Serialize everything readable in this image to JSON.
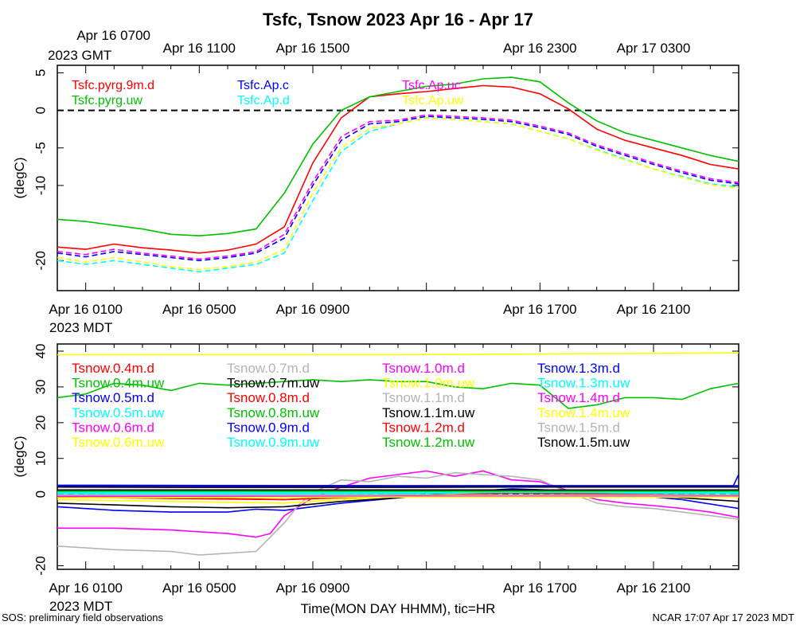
{
  "page": {
    "title": "Tsfc, Tsnow 2023 Apr 16 - Apr 17",
    "footer_left": "SOS: preliminary field observations",
    "footer_right": "NCAR 17:07 Apr 17 2023 MDT",
    "xlabel": "Time(MON DAY HHMM), tic=HR",
    "gmt_ticks": [
      "Apr 16 0700",
      "Apr 16 1100",
      "Apr 16 1500",
      "Apr 16 2300",
      "Apr 17 0300"
    ],
    "gmt_zone": "2023 GMT",
    "mdt_ticks": [
      "Apr 16 0100",
      "Apr 16 0500",
      "Apr 16 0900",
      "Apr 16 1700",
      "Apr 16 2100"
    ],
    "mdt_zone": "2023 MDT"
  },
  "chart_data": [
    {
      "type": "line",
      "title": "Tsfc, Tsnow 2023 Apr 16 - Apr 17",
      "ylabel": "(degC)",
      "xlabel": "",
      "ylim": [
        -24,
        6
      ],
      "x_ticks_hours": [
        1,
        5,
        9,
        13,
        17,
        21
      ],
      "y_ticks": [
        5,
        0,
        -5,
        -10,
        -20
      ],
      "reference_line": 0,
      "series": [
        {
          "name": "Tsfc.pyrg.9m.d",
          "color": "#ff0000",
          "dashed": false,
          "x": [
            0,
            1,
            2,
            3,
            4,
            5,
            6,
            7,
            8,
            9,
            10,
            11,
            12,
            13,
            14,
            15,
            16,
            17,
            18,
            19,
            20,
            21,
            22,
            23,
            24
          ],
          "y": [
            -18.2,
            -18.5,
            -17.8,
            -18.3,
            -18.6,
            -19.0,
            -18.6,
            -17.8,
            -15.5,
            -7.0,
            -1.0,
            1.8,
            2.2,
            2.5,
            2.9,
            3.3,
            3.1,
            2.2,
            0.2,
            -2.5,
            -4.0,
            -5.0,
            -6.0,
            -7.2,
            -7.8
          ]
        },
        {
          "name": "Tsfc.pyrg.uw",
          "color": "#00c000",
          "dashed": false,
          "x": [
            0,
            1,
            2,
            3,
            4,
            5,
            6,
            7,
            8,
            9,
            10,
            11,
            12,
            13,
            14,
            15,
            16,
            17,
            18,
            19,
            20,
            21,
            22,
            23,
            24
          ],
          "y": [
            -14.5,
            -14.8,
            -15.3,
            -15.8,
            -16.5,
            -16.7,
            -16.4,
            -15.8,
            -11.0,
            -4.5,
            0.0,
            1.8,
            2.5,
            3.2,
            3.5,
            4.2,
            4.4,
            3.8,
            1.0,
            -1.4,
            -3.0,
            -4.0,
            -5.0,
            -6.0,
            -6.8
          ]
        },
        {
          "name": "Tsfc.Ap.c",
          "color": "#0000ff",
          "dashed": true,
          "x": [
            0,
            1,
            2,
            3,
            4,
            5,
            6,
            7,
            8,
            9,
            10,
            11,
            12,
            13,
            14,
            15,
            16,
            17,
            18,
            19,
            20,
            21,
            22,
            23,
            24
          ],
          "y": [
            -19.0,
            -19.5,
            -18.8,
            -19.2,
            -19.6,
            -20.0,
            -19.6,
            -19.0,
            -17.0,
            -10.0,
            -4.0,
            -1.8,
            -1.5,
            -0.8,
            -1.0,
            -1.2,
            -1.5,
            -2.3,
            -3.2,
            -4.8,
            -6.0,
            -7.2,
            -8.3,
            -9.3,
            -9.8
          ]
        },
        {
          "name": "Tsfc.Ap.d",
          "color": "#00ffff",
          "dashed": true,
          "x": [
            0,
            1,
            2,
            3,
            4,
            5,
            6,
            7,
            8,
            9,
            10,
            11,
            12,
            13,
            14,
            15,
            16,
            17,
            18,
            19,
            20,
            21,
            22,
            23,
            24
          ],
          "y": [
            -20.0,
            -20.5,
            -20.0,
            -20.5,
            -21.0,
            -21.5,
            -21.0,
            -20.5,
            -19.0,
            -12.0,
            -5.5,
            -2.8,
            -1.8,
            -1.0,
            -1.2,
            -1.5,
            -1.8,
            -2.8,
            -3.8,
            -5.2,
            -6.5,
            -7.8,
            -8.8,
            -9.8,
            -10.2
          ]
        },
        {
          "name": "Tsfc.Ap.uc",
          "color": "#ff00ff",
          "dashed": true,
          "x": [
            0,
            1,
            2,
            3,
            4,
            5,
            6,
            7,
            8,
            9,
            10,
            11,
            12,
            13,
            14,
            15,
            16,
            17,
            18,
            19,
            20,
            21,
            22,
            23,
            24
          ],
          "y": [
            -18.8,
            -19.2,
            -18.5,
            -19.0,
            -19.4,
            -19.8,
            -19.4,
            -18.8,
            -16.5,
            -9.5,
            -3.5,
            -1.5,
            -1.3,
            -0.6,
            -0.8,
            -1.0,
            -1.3,
            -2.1,
            -3.0,
            -4.6,
            -5.8,
            -7.0,
            -8.1,
            -9.1,
            -9.6
          ]
        },
        {
          "name": "Tsfc.Ap.uw",
          "color": "#ffff00",
          "dashed": true,
          "x": [
            0,
            1,
            2,
            3,
            4,
            5,
            6,
            7,
            8,
            9,
            10,
            11,
            12,
            13,
            14,
            15,
            16,
            17,
            18,
            19,
            20,
            21,
            22,
            23,
            24
          ],
          "y": [
            -19.6,
            -20.2,
            -19.6,
            -20.2,
            -20.8,
            -21.2,
            -20.8,
            -20.2,
            -18.5,
            -11.0,
            -5.0,
            -2.4,
            -1.8,
            -1.0,
            -1.2,
            -1.5,
            -1.8,
            -2.8,
            -3.8,
            -5.3,
            -6.6,
            -7.8,
            -8.9,
            -9.9,
            -10.4
          ]
        }
      ]
    },
    {
      "type": "line",
      "title": "",
      "ylabel": "(degC)",
      "xlabel": "Time(MON DAY HHMM), tic=HR",
      "ylim": [
        -21,
        42
      ],
      "x_ticks_hours": [
        1,
        5,
        9,
        13,
        17,
        21
      ],
      "y_ticks": [
        40,
        30,
        20,
        10,
        0,
        -20
      ],
      "reference_line": 0,
      "series": [
        {
          "name": "Tsnow.0.4m.d",
          "color": "#ff0000",
          "x": [
            0,
            4,
            8,
            10,
            12,
            14,
            16,
            18,
            20,
            22,
            24
          ],
          "y": [
            -0.5,
            -1.0,
            -1.5,
            -0.8,
            0.0,
            0.5,
            1.0,
            0.5,
            0.0,
            -0.3,
            -0.5
          ]
        },
        {
          "name": "Tsnow.0.4m.uw",
          "color": "#00c000",
          "x": [
            0,
            1,
            2,
            3,
            4,
            5,
            6,
            7,
            8,
            9,
            10,
            11,
            12,
            13,
            14,
            15,
            16,
            17,
            18,
            19,
            20,
            21,
            22,
            23,
            24
          ],
          "y": [
            27,
            28,
            31,
            30.5,
            29,
            31,
            30.5,
            31,
            31.5,
            32,
            31.5,
            32,
            31.5,
            31.5,
            30,
            29.5,
            31,
            30.5,
            24,
            25,
            27,
            27,
            26.5,
            29.5,
            31
          ]
        },
        {
          "name": "Tsnow.0.5m.d",
          "color": "#0000ff",
          "x": [
            0,
            2,
            4,
            6,
            7,
            8,
            10,
            12,
            14,
            16,
            18,
            20,
            22,
            24
          ],
          "y": [
            -3.5,
            -4.5,
            -5.0,
            -5.0,
            -4.2,
            -4.5,
            -2.5,
            -1.0,
            0.5,
            1.5,
            1.0,
            0.0,
            -1.5,
            -4.0
          ]
        },
        {
          "name": "Tsnow.0.5m.uw",
          "color": "#00ffff",
          "x": [
            0,
            6,
            12,
            18,
            24
          ],
          "y": [
            0.2,
            0.0,
            0.2,
            0.4,
            0.2
          ]
        },
        {
          "name": "Tsnow.0.6m.d",
          "color": "#ff00ff",
          "x": [
            0,
            2,
            4,
            6,
            7,
            7.5,
            8,
            9,
            10,
            11,
            12,
            13,
            14,
            15,
            16,
            17,
            18,
            19,
            20,
            21,
            22,
            23,
            24
          ],
          "y": [
            -9.5,
            -9.5,
            -10.0,
            -11.0,
            -12.0,
            -11.0,
            -6.0,
            -1.0,
            2.0,
            4.5,
            5.5,
            6.5,
            5.0,
            6.5,
            4.0,
            3.5,
            1.0,
            -1.5,
            -2.5,
            -3.2,
            -4.0,
            -5.0,
            -6.5
          ]
        },
        {
          "name": "Tsnow.0.6m.uw",
          "color": "#ffff00",
          "x": [
            0,
            12,
            24
          ],
          "y": [
            39,
            39,
            39.5
          ]
        },
        {
          "name": "Tsnow.0.7m.d",
          "color": "#b4b4b4",
          "x": [
            0,
            2,
            4,
            5,
            6,
            7,
            7.5,
            8,
            8.5,
            9,
            10,
            11,
            12,
            13,
            14,
            15,
            16,
            17,
            18,
            19,
            20,
            21,
            22,
            23,
            24
          ],
          "y": [
            -14.5,
            -15.5,
            -16.0,
            -17.0,
            -16.5,
            -16.0,
            -12.0,
            -8.0,
            -3.0,
            0.5,
            4.0,
            3.5,
            5.0,
            4.5,
            6.0,
            5.5,
            5.0,
            4.0,
            0.5,
            -2.5,
            -3.5,
            -4.0,
            -5.0,
            -6.0,
            -7.0
          ]
        },
        {
          "name": "Tsnow.0.7m.uw",
          "color": "#000000",
          "x": [
            0,
            2,
            4,
            6,
            8,
            10,
            12,
            14,
            16,
            18,
            20,
            22,
            24
          ],
          "y": [
            -2.5,
            -3.0,
            -3.5,
            -3.8,
            -3.5,
            -2.0,
            -1.0,
            0.5,
            1.0,
            0.8,
            0.0,
            -1.0,
            -2.0
          ]
        },
        {
          "name": "Tsnow.0.8m.d",
          "color": "#ff0000",
          "x": [
            0,
            12,
            24
          ],
          "y": [
            0.6,
            0.6,
            0.6
          ]
        },
        {
          "name": "Tsnow.0.8m.uw",
          "color": "#00c000",
          "x": [
            0,
            12,
            24
          ],
          "y": [
            0.8,
            0.8,
            0.8
          ]
        },
        {
          "name": "Tsnow.0.9m.d",
          "color": "#0000ff",
          "x": [
            0,
            12,
            23.8,
            24
          ],
          "y": [
            2.3,
            2.2,
            2.2,
            5.5
          ]
        },
        {
          "name": "Tsnow.0.9m.uw",
          "color": "#00ffff",
          "x": [
            0,
            12,
            24
          ],
          "y": [
            0.3,
            0.3,
            0.3
          ]
        },
        {
          "name": "Tsnow.1.0m.d",
          "color": "#ff00ff",
          "x": [
            0,
            12,
            24
          ],
          "y": [
            -0.3,
            -0.3,
            -0.3
          ]
        },
        {
          "name": "Tsnow.1.0m.uw",
          "color": "#ffff00",
          "x": [
            0,
            4,
            8,
            10,
            12,
            16,
            20,
            24
          ],
          "y": [
            -1.5,
            -2.0,
            -2.5,
            -1.5,
            -0.5,
            0.5,
            0.0,
            -0.5
          ]
        },
        {
          "name": "Tsnow.1.1m.d",
          "color": "#b4b4b4",
          "x": [
            0,
            12,
            24
          ],
          "y": [
            -0.4,
            -0.4,
            -0.4
          ]
        },
        {
          "name": "Tsnow.1.1m.uw",
          "color": "#000000",
          "x": [
            0,
            4,
            8,
            12,
            16,
            20,
            24
          ],
          "y": [
            2.0,
            1.9,
            1.9,
            1.9,
            2.0,
            2.0,
            2.0
          ]
        },
        {
          "name": "Tsnow.1.2m.d",
          "color": "#ff0000",
          "x": [
            0,
            4,
            8,
            12,
            16,
            20,
            24
          ],
          "y": [
            -0.8,
            -1.2,
            -1.5,
            -0.5,
            0.3,
            0.0,
            -0.3
          ]
        },
        {
          "name": "Tsnow.1.2m.uw",
          "color": "#00c000",
          "x": [
            0,
            12,
            24
          ],
          "y": [
            1.0,
            1.0,
            1.0
          ]
        },
        {
          "name": "Tsnow.1.3m.d",
          "color": "#0000ff",
          "x": [
            0,
            12,
            24
          ],
          "y": [
            2.5,
            2.4,
            2.4
          ]
        },
        {
          "name": "Tsnow.1.3m.uw",
          "color": "#00ffff",
          "x": [
            0,
            12,
            24
          ],
          "y": [
            0.5,
            0.5,
            0.5
          ]
        },
        {
          "name": "Tsnow.1.4m.d",
          "color": "#ff00ff",
          "x": [
            0,
            12,
            24
          ],
          "y": [
            -0.6,
            -0.6,
            -0.6
          ]
        },
        {
          "name": "Tsnow.1.4m.uw",
          "color": "#ffff00",
          "x": [
            0,
            12,
            24
          ],
          "y": [
            -1.0,
            -0.8,
            -0.8
          ]
        },
        {
          "name": "Tsnow.1.5m.d",
          "color": "#b4b4b4",
          "x": [
            0,
            12,
            24
          ],
          "y": [
            -0.2,
            -0.2,
            -0.2
          ]
        },
        {
          "name": "Tsnow.1.5m.uw",
          "color": "#000000",
          "x": [
            0,
            12,
            24
          ],
          "y": [
            1.2,
            1.2,
            1.2
          ]
        }
      ]
    }
  ]
}
